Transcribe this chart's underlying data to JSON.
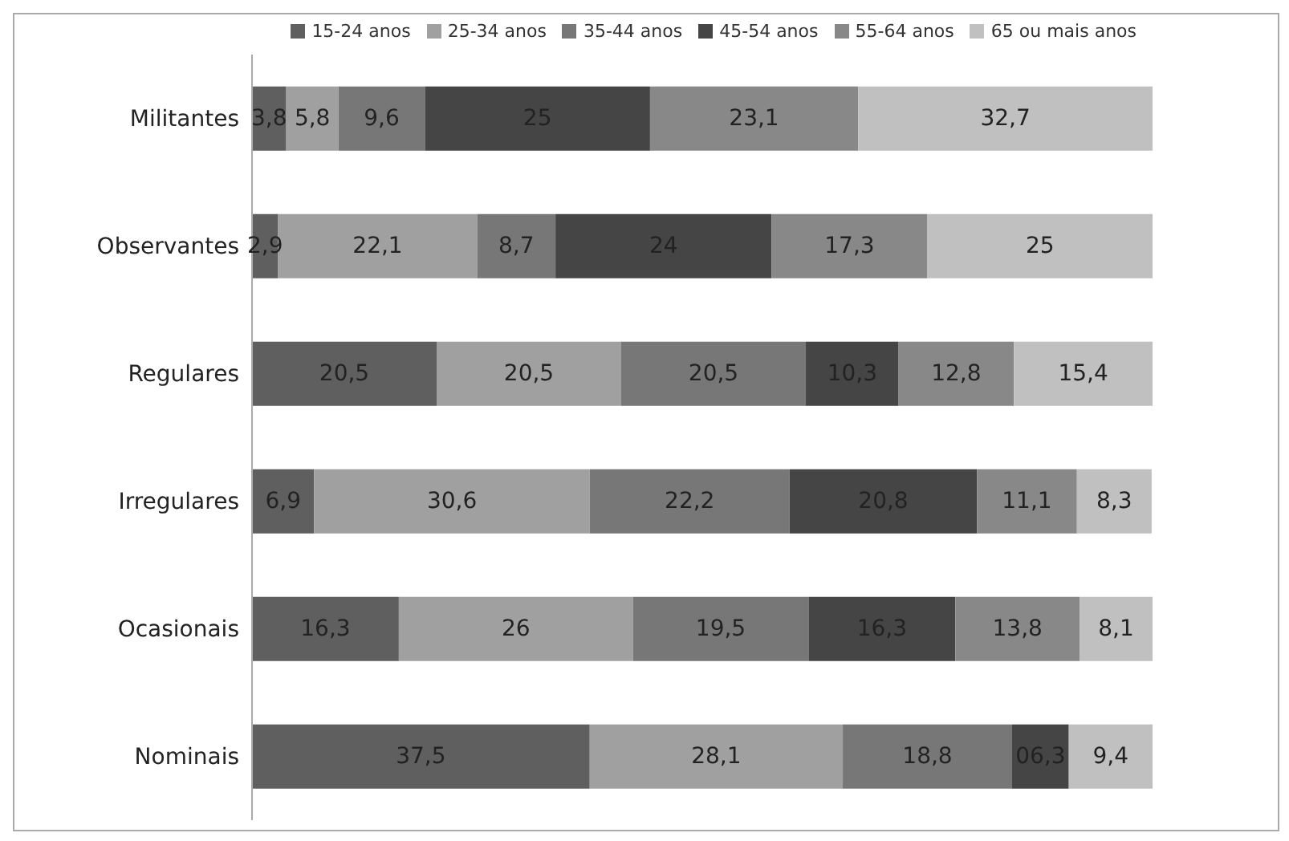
{
  "chart_data": {
    "type": "bar",
    "orientation": "horizontal",
    "stacked": true,
    "categories": [
      "Militantes",
      "Observantes",
      "Regulares",
      "Irregulares",
      "Ocasionais",
      "Nominais"
    ],
    "xlim": [
      0,
      100
    ],
    "tick_labels": "y",
    "legend": "top",
    "grid": false,
    "series": [
      {
        "name": "15-24 anos",
        "color": "#5f5f5f",
        "values": [
          3.8,
          2.9,
          20.5,
          6.9,
          16.3,
          37.5
        ],
        "value_labels": [
          "3,8",
          "2,9",
          "20,5",
          "6,9",
          "16,3",
          "37,5"
        ]
      },
      {
        "name": "25-34 anos",
        "color": "#a0a0a0",
        "values": [
          5.8,
          22.1,
          20.5,
          30.6,
          26,
          28.1
        ],
        "value_labels": [
          "5,8",
          "22,1",
          "20,5",
          "30,6",
          "26",
          "28,1"
        ]
      },
      {
        "name": "35-44 anos",
        "color": "#777777",
        "values": [
          9.6,
          8.7,
          20.5,
          22.2,
          19.5,
          18.8
        ],
        "value_labels": [
          "9,6",
          "8,7",
          "20,5",
          "22,2",
          "19,5",
          "18,8"
        ]
      },
      {
        "name": "45-54 anos",
        "color": "#454545",
        "values": [
          25,
          24,
          10.3,
          20.8,
          16.3,
          6.3
        ],
        "value_labels": [
          "25",
          "24",
          "10,3",
          "20,8",
          "16,3",
          "06,3"
        ]
      },
      {
        "name": "55-64 anos",
        "color": "#888888",
        "values": [
          23.1,
          17.3,
          12.8,
          11.1,
          13.8,
          0
        ],
        "value_labels": [
          "23,1",
          "17,3",
          "12,8",
          "11,1",
          "13,8",
          null
        ]
      },
      {
        "name": "65 ou mais anos",
        "color": "#c0c0c0",
        "values": [
          32.7,
          25,
          15.4,
          8.3,
          8.1,
          9.4
        ],
        "value_labels": [
          "32,7",
          "25",
          "15,4",
          "8,3",
          "8,1",
          "9,4"
        ]
      }
    ]
  }
}
